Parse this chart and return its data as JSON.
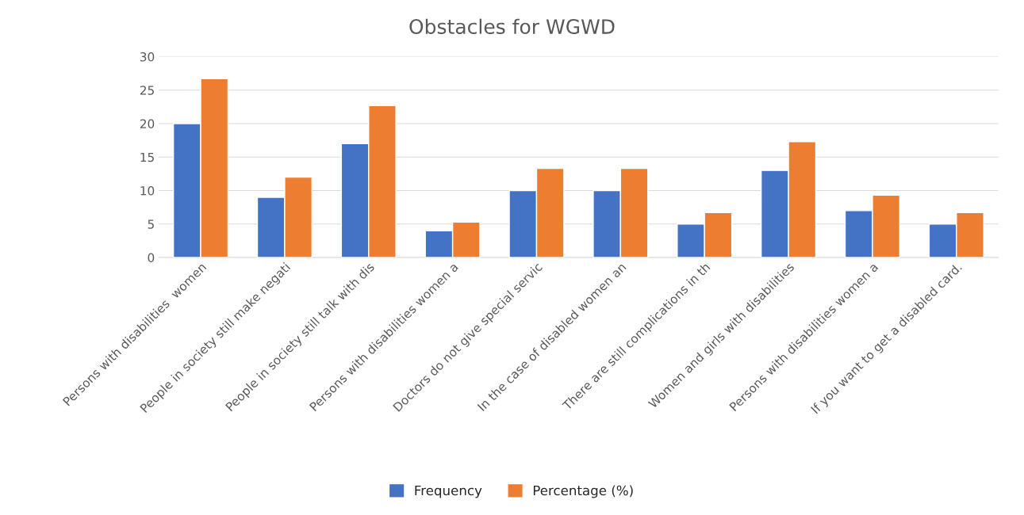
{
  "chart_data": {
    "type": "bar",
    "title": "Obstacles for WGWD",
    "categories": [
      "Persons with disabilities  women",
      "People in society still make negati",
      "People in society still talk with dis",
      "Persons with disabilities women a",
      "Doctors do not give special servic",
      "In the case of disabled women an",
      "There are still complications in th",
      "Women and girls with disabilities",
      "Persons with disabilities women a",
      "If you want to get a disabled card."
    ],
    "series": [
      {
        "name": "Frequency",
        "color": "#4472c4",
        "values": [
          20,
          9,
          17,
          4,
          10,
          10,
          5,
          13,
          7,
          5
        ]
      },
      {
        "name": "Percentage (%)",
        "color": "#ed7d31",
        "values": [
          26.7,
          12,
          22.7,
          5.3,
          13.3,
          13.3,
          6.7,
          17.3,
          9.3,
          6.7
        ]
      }
    ],
    "ylim": [
      0,
      30
    ],
    "yticks": [
      0,
      5,
      10,
      15,
      20,
      25,
      30
    ],
    "grid": "y",
    "legend": "bottom"
  }
}
